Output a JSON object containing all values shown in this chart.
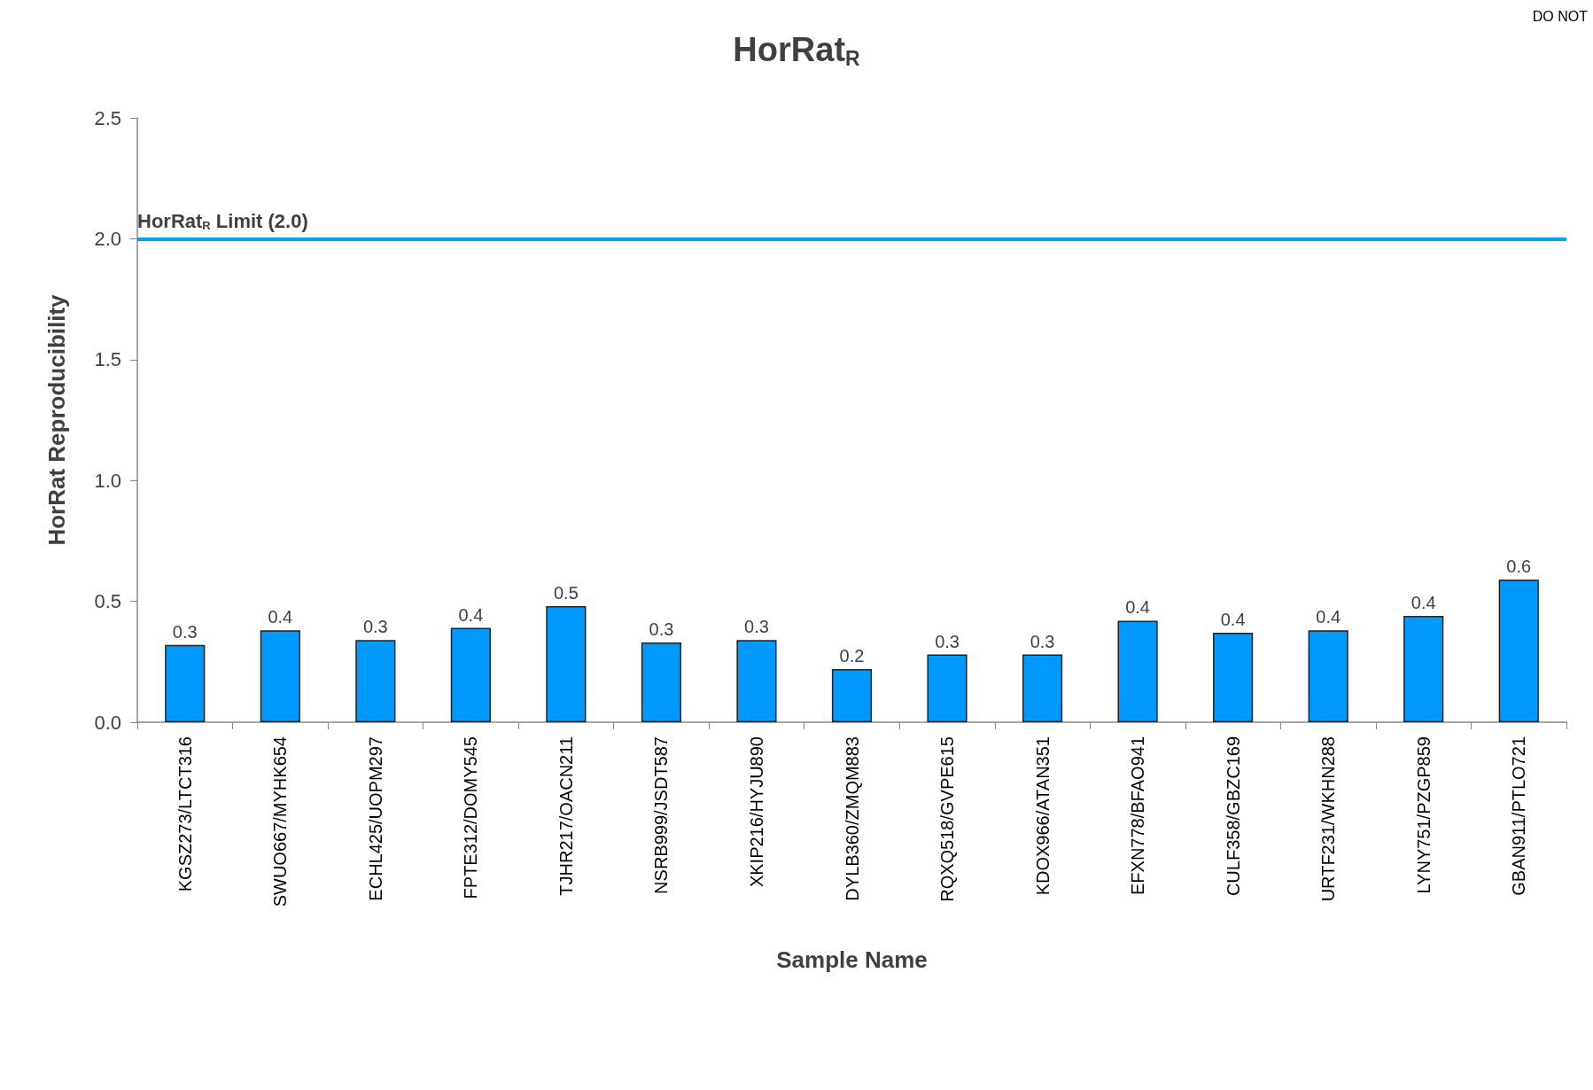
{
  "chart_data": {
    "type": "bar",
    "title": "HorRat$_{R}$",
    "xlabel": "Sample Name",
    "ylabel": "HorRat Reproducibility",
    "categories": [
      "KGSZ273/LTCT316",
      "SWUO667/MYHK654",
      "ECHL425/UOPM297",
      "FPTE312/DOMY545",
      "TJHR217/OACN211",
      "NSRB999/JSDT587",
      "XKIP216/HYJU890",
      "DYLB360/ZMQM883",
      "RQXQ518/GVPE615",
      "KDOX966/ATAN351",
      "EFXN778/BFAO941",
      "CULF358/GBZC169",
      "URTF231/WKHN288",
      "LYNY751/PZGP859",
      "GBAN911/PTLO721"
    ],
    "values": [
      0.32,
      0.38,
      0.34,
      0.39,
      0.48,
      0.33,
      0.34,
      0.22,
      0.28,
      0.28,
      0.42,
      0.37,
      0.38,
      0.44,
      0.59
    ],
    "value_labels": [
      "0.3",
      "0.4",
      "0.3",
      "0.4",
      "0.5",
      "0.3",
      "0.3",
      "0.2",
      "0.3",
      "0.3",
      "0.4",
      "0.4",
      "0.4",
      "0.4",
      "0.6"
    ],
    "color": "#0099ff",
    "ylim": [
      0,
      2.5
    ],
    "yticks": [
      {
        "value": 0,
        "label": "0.0"
      },
      {
        "value": 0.5,
        "label": "0.5"
      },
      {
        "value": 1,
        "label": "1.0"
      },
      {
        "value": 1.5,
        "label": "1.5"
      },
      {
        "value": 2,
        "label": "2.0"
      },
      {
        "value": 2.5,
        "label": "2.5"
      }
    ],
    "ref_lines": [
      {
        "axis": "y",
        "value": 2.0,
        "label": "HorRat$_{R}$ Limit (2.0)",
        "color": "#00a2f0"
      }
    ],
    "annotations": [
      "DO NOT"
    ],
    "grid": false
  }
}
